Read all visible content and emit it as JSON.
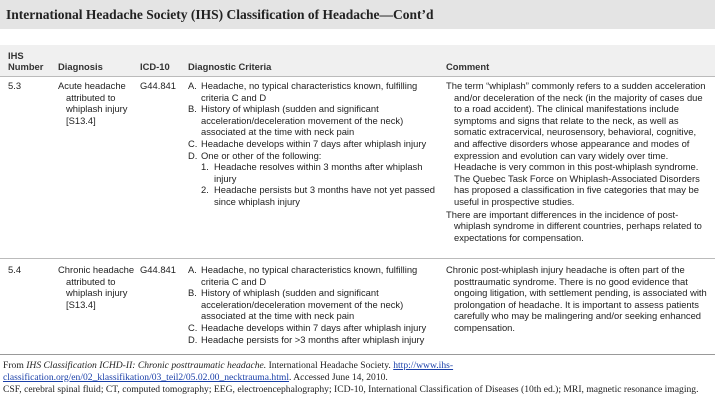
{
  "header": {
    "title": "International Headache Society (IHS) Classification of Headache—Cont’d"
  },
  "table": {
    "columns": [
      "IHS Number",
      "Diagnosis",
      "ICD-10",
      "Diagnostic Criteria",
      "Comment"
    ],
    "rows": [
      {
        "number": "5.3",
        "diagnosis": "Acute headache attributed to whiplash injury [S13.4]",
        "icd10": "G44.841",
        "criteria": [
          {
            "marker": "A.",
            "text": "Headache, no typical characteristics known, fulfilling criteria C and D"
          },
          {
            "marker": "B.",
            "text": "History of whiplash (sudden and significant acceleration/deceleration movement of the neck) associated at the time with neck pain"
          },
          {
            "marker": "C.",
            "text": "Headache develops within 7 days after whiplash injury"
          },
          {
            "marker": "D.",
            "text": "One or other of the following:",
            "subitems": [
              {
                "marker": "1.",
                "text": "Headache resolves within 3 months after whiplash injury"
              },
              {
                "marker": "2.",
                "text": "Headache persists but 3 months have not yet passed since whiplash injury"
              }
            ]
          }
        ],
        "comment": [
          "The term “whiplash” commonly refers to a sudden acceleration and/or deceleration of the neck (in the majority of cases due to a road accident). The clinical manifestations include symptoms and signs that relate to the neck, as well as somatic extracervical, neurosensory, behavioral, cognitive, and affective disorders whose appearance and modes of expression and evolution can vary widely over time. Headache is very common in this post-whiplash syndrome. The Quebec Task Force on Whiplash-Associated Disorders has proposed a classification in five categories that may be useful in prospective studies.",
          "There are important differences in the incidence of post-whiplash syndrome in different countries, perhaps related to expectations for compensation."
        ]
      },
      {
        "number": "5.4",
        "diagnosis": "Chronic headache attributed to whiplash injury [S13.4]",
        "icd10": "G44.841",
        "criteria": [
          {
            "marker": "A.",
            "text": "Headache, no typical characteristics known, fulfilling criteria C and D"
          },
          {
            "marker": "B.",
            "text": "History of whiplash (sudden and significant acceleration/deceleration movement of the neck) associated at the time with neck pain"
          },
          {
            "marker": "C.",
            "text": "Headache develops within 7 days after whiplash injury"
          },
          {
            "marker": "D.",
            "text": "Headache persists for >3 months after whiplash injury"
          }
        ],
        "comment": [
          "Chronic post-whiplash injury headache is often part of the posttraumatic syndrome. There is no good evidence that ongoing litigation, with settlement pending, is associated with prolongation of headache. It is important to assess patients carefully who may be malingering and/or seeking enhanced compensation."
        ]
      }
    ]
  },
  "footer": {
    "source": {
      "prefix": "From",
      "work": "IHS Classification ICHD-II: Chronic posttraumatic headache.",
      "publisher": "International Headache Society.",
      "url": "http://www.ihs-classification.org/en/02_klassifikation/03_teil2/05.02.00_necktrauma.html",
      "accessed": ". Accessed June 14, 2010."
    },
    "abbreviations": "CSF, cerebral spinal fluid; CT, computed tomography; EEG, electroencephalography; ICD-10, International Classification of Diseases (10th ed.); MRI, magnetic resonance imaging."
  }
}
